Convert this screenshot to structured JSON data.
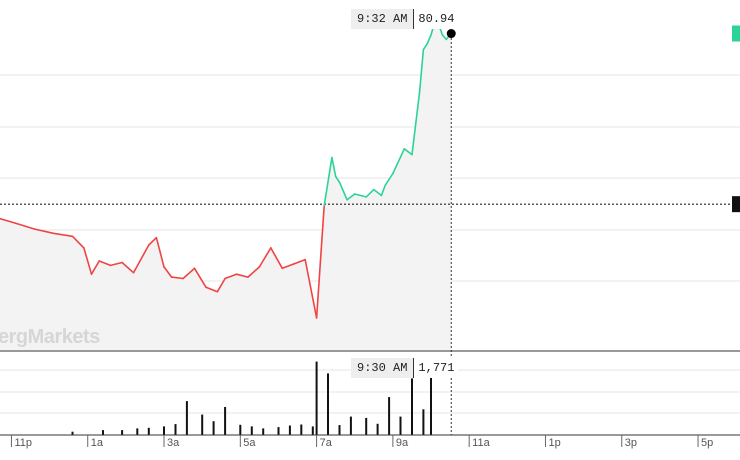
{
  "watermark": "ergMarkets",
  "crosshair": {
    "price_time": "9:32 AM",
    "price_value": "80.94",
    "volume_time": "9:30 AM",
    "volume_value": "1,771"
  },
  "colors": {
    "up": "#2bd496",
    "down": "#f04444",
    "area": "#f3f3f3",
    "grid": "#e6e6e6",
    "axis": "#333333"
  },
  "chart_data": [
    {
      "type": "line",
      "title": "",
      "xlabel": "",
      "ylabel": "",
      "x_range_hours": [
        22.7,
        42.1
      ],
      "reference_value": 78.6,
      "ylim": [
        76.6,
        81.4
      ],
      "series": [
        {
          "x": [
            22.7,
            23.1,
            23.6,
            24.1,
            24.6,
            24.9,
            25.1,
            25.3,
            25.6,
            25.9,
            26.2,
            26.6,
            26.8,
            27.0,
            27.2,
            27.5,
            27.8,
            28.1,
            28.4,
            28.6,
            28.9,
            29.2,
            29.5,
            29.8,
            30.1,
            30.4,
            30.7,
            31.0,
            31.2,
            31.4,
            31.5,
            31.6,
            31.7,
            31.8,
            32.0,
            32.3,
            32.5,
            32.7,
            32.8,
            33.0,
            33.3,
            33.5,
            33.7,
            33.8,
            33.9,
            34.0,
            34.1,
            34.2,
            34.3,
            34.4,
            34.53
          ],
          "y": [
            78.4,
            78.34,
            78.26,
            78.2,
            78.16,
            78.0,
            77.64,
            77.82,
            77.76,
            77.8,
            77.66,
            78.04,
            78.14,
            77.74,
            77.6,
            77.58,
            77.72,
            77.46,
            77.4,
            77.58,
            77.64,
            77.6,
            77.74,
            78.0,
            77.72,
            77.78,
            77.84,
            77.04,
            78.58,
            79.24,
            78.98,
            78.9,
            78.78,
            78.66,
            78.74,
            78.7,
            78.8,
            78.72,
            78.86,
            79.02,
            79.36,
            79.28,
            80.14,
            80.72,
            80.8,
            80.92,
            81.1,
            81.06,
            80.92,
            80.86,
            80.94
          ]
        }
      ]
    },
    {
      "type": "bar",
      "title": "",
      "xlabel": "",
      "ylabel": "",
      "x": [
        24.6,
        25.4,
        25.9,
        26.3,
        26.6,
        27.0,
        27.3,
        27.6,
        28.0,
        28.3,
        28.6,
        29.0,
        29.3,
        29.6,
        30.0,
        30.3,
        30.6,
        30.9,
        31.0,
        31.3,
        31.6,
        31.9,
        32.3,
        32.6,
        32.9,
        33.2,
        33.5,
        33.8,
        34.0
      ],
      "values": [
        100,
        150,
        150,
        200,
        220,
        260,
        330,
        1030,
        620,
        420,
        850,
        310,
        260,
        200,
        240,
        290,
        320,
        260,
        2230,
        1870,
        300,
        560,
        520,
        340,
        1150,
        560,
        1720,
        780,
        1771
      ],
      "ylim": [
        0,
        2400
      ],
      "x_ticks": [
        {
          "label": "11p",
          "hour": 23
        },
        {
          "label": "1a",
          "hour": 25
        },
        {
          "label": "3a",
          "hour": 27
        },
        {
          "label": "5a",
          "hour": 29
        },
        {
          "label": "7a",
          "hour": 31
        },
        {
          "label": "9a",
          "hour": 33
        },
        {
          "label": "11a",
          "hour": 35
        },
        {
          "label": "1p",
          "hour": 37
        },
        {
          "label": "3p",
          "hour": 39
        },
        {
          "label": "5p",
          "hour": 41
        }
      ]
    }
  ]
}
